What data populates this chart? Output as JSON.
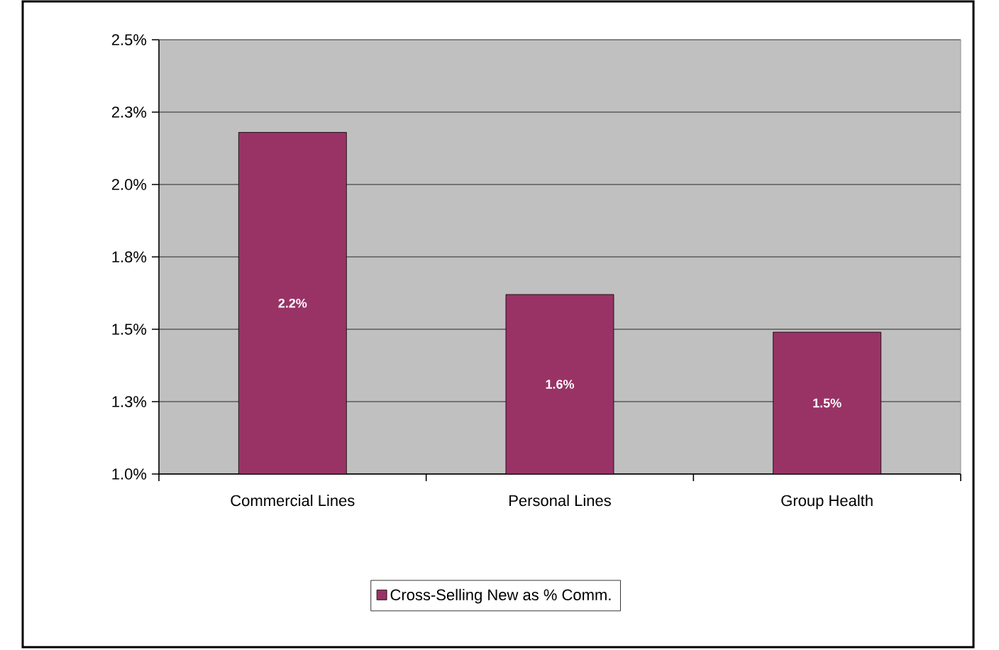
{
  "chart_data": {
    "type": "bar",
    "categories": [
      "Commercial Lines",
      "Personal Lines",
      "Group Health"
    ],
    "series": [
      {
        "name": "Cross-Selling New as % Comm.",
        "color": "#993366",
        "values": [
          2.18,
          1.62,
          1.49
        ],
        "value_labels": [
          "2.2%",
          "1.6%",
          "1.5%"
        ]
      }
    ],
    "ylim": [
      1.0,
      2.5
    ],
    "yticks": [
      {
        "value": 1.0,
        "label": "1.0%"
      },
      {
        "value": 1.25,
        "label": "1.3%"
      },
      {
        "value": 1.5,
        "label": "1.5%"
      },
      {
        "value": 1.75,
        "label": "1.8%"
      },
      {
        "value": 2.0,
        "label": "2.0%"
      },
      {
        "value": 2.25,
        "label": "2.3%"
      },
      {
        "value": 2.5,
        "label": "2.5%"
      }
    ],
    "grid": "y",
    "legend": "bottom"
  }
}
